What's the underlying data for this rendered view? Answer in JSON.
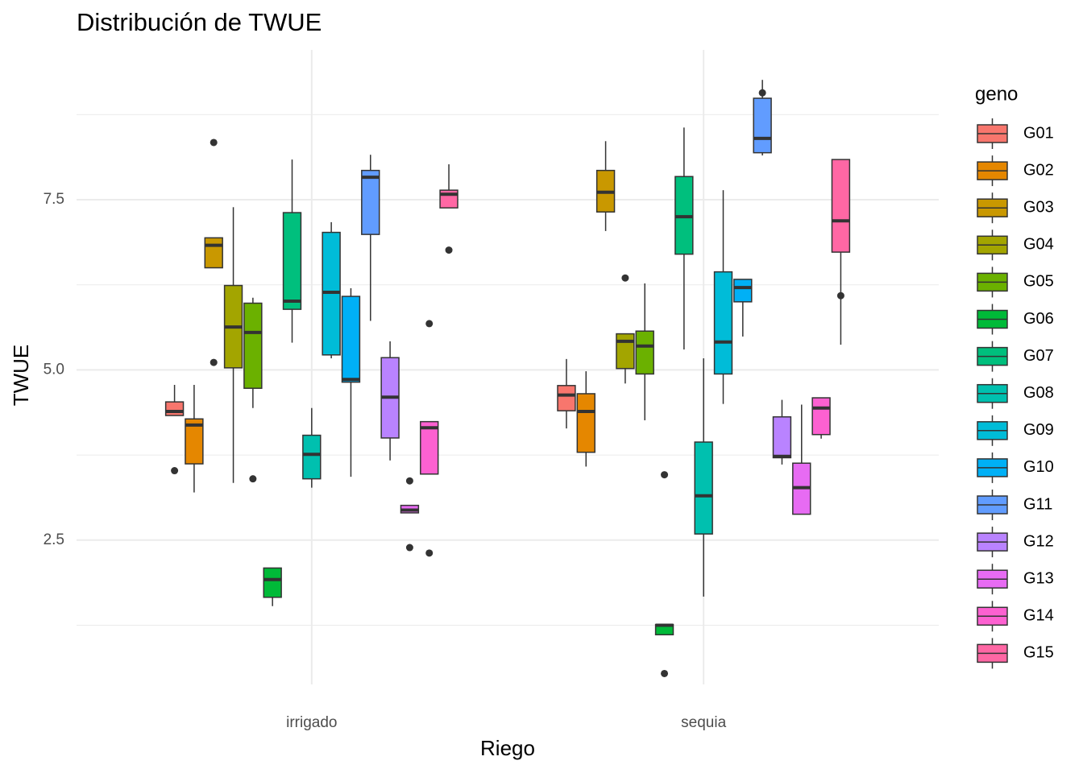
{
  "chart_data": {
    "type": "boxplot",
    "title": "Distribución de TWUE",
    "x_label": "Riego",
    "y_label": "TWUE",
    "categories": [
      "irrigado",
      "sequia"
    ],
    "ylim": [
      0.38,
      9.7
    ],
    "yticks": [
      2.5,
      {
        "value": 5,
        "label": "5.0"
      },
      7.5
    ],
    "minor_yticks": [
      1.25,
      3.75,
      6.25,
      8.75
    ],
    "grid": true,
    "legend_title": "geno",
    "legend_position": "right",
    "series": [
      {
        "name": "G01",
        "color": "#F8766D",
        "low": [
          4.33,
          4.14
        ],
        "q1": [
          4.33,
          4.4
        ],
        "median": [
          4.39,
          4.63
        ],
        "q3": [
          4.53,
          4.77
        ],
        "high": [
          4.78,
          5.16
        ],
        "outliers": [
          [
            3.52
          ],
          []
        ]
      },
      {
        "name": "G02",
        "color": "#E58700",
        "low": [
          3.2,
          3.58
        ],
        "q1": [
          3.62,
          3.79
        ],
        "median": [
          4.19,
          4.39
        ],
        "q3": [
          4.28,
          4.65
        ],
        "high": [
          4.78,
          4.98
        ],
        "outliers": [
          [],
          []
        ]
      },
      {
        "name": "G03",
        "color": "#C99800",
        "low": [
          6.5,
          7.04
        ],
        "q1": [
          6.5,
          7.32
        ],
        "median": [
          6.83,
          7.61
        ],
        "q3": [
          6.94,
          7.93
        ],
        "high": [
          6.94,
          8.36
        ],
        "outliers": [
          [
            8.34,
            5.11
          ],
          []
        ]
      },
      {
        "name": "G04",
        "color": "#A3A500",
        "low": [
          3.34,
          4.8
        ],
        "q1": [
          5.03,
          5.02
        ],
        "median": [
          5.63,
          5.42
        ],
        "q3": [
          6.24,
          5.53
        ],
        "high": [
          7.39,
          5.53
        ],
        "outliers": [
          [],
          [
            6.35
          ]
        ]
      },
      {
        "name": "G05",
        "color": "#6BB100",
        "low": [
          4.44,
          4.26
        ],
        "q1": [
          4.73,
          4.94
        ],
        "median": [
          5.55,
          5.35
        ],
        "q3": [
          5.98,
          5.57
        ],
        "high": [
          6.06,
          6.27
        ],
        "outliers": [
          [
            3.4
          ],
          []
        ]
      },
      {
        "name": "G06",
        "color": "#00BA38",
        "low": [
          1.53,
          1.11
        ],
        "q1": [
          1.66,
          1.11
        ],
        "median": [
          1.92,
          1.25
        ],
        "q3": [
          2.09,
          1.26
        ],
        "high": [
          2.09,
          1.26
        ],
        "outliers": [
          [],
          [
            3.46,
            0.54
          ]
        ]
      },
      {
        "name": "G07",
        "color": "#00BF7D",
        "low": [
          5.4,
          5.3
        ],
        "q1": [
          5.89,
          6.7
        ],
        "median": [
          6.01,
          7.25
        ],
        "q3": [
          7.31,
          7.84
        ],
        "high": [
          8.09,
          8.56
        ],
        "outliers": [
          [],
          []
        ]
      },
      {
        "name": "G08",
        "color": "#00C0AF",
        "low": [
          3.27,
          1.67
        ],
        "q1": [
          3.4,
          2.59
        ],
        "median": [
          3.76,
          3.15
        ],
        "q3": [
          4.04,
          3.94
        ],
        "high": [
          4.44,
          5.17
        ],
        "outliers": [
          [],
          []
        ]
      },
      {
        "name": "G09",
        "color": "#00BCD8",
        "low": [
          5.17,
          4.5
        ],
        "q1": [
          5.22,
          4.94
        ],
        "median": [
          6.14,
          5.41
        ],
        "q3": [
          7.02,
          6.44
        ],
        "high": [
          7.17,
          7.64
        ],
        "outliers": [
          [],
          []
        ]
      },
      {
        "name": "G10",
        "color": "#00B0F6",
        "low": [
          3.43,
          5.49
        ],
        "q1": [
          4.82,
          6.0
        ],
        "median": [
          4.86,
          6.21
        ],
        "q3": [
          6.08,
          6.33
        ],
        "high": [
          6.2,
          6.33
        ],
        "outliers": [
          [],
          []
        ]
      },
      {
        "name": "G11",
        "color": "#619CFF",
        "low": [
          5.72,
          8.15
        ],
        "q1": [
          6.99,
          8.19
        ],
        "median": [
          7.83,
          8.4
        ],
        "q3": [
          7.93,
          8.99
        ],
        "high": [
          8.16,
          9.26
        ],
        "outliers": [
          [],
          [
            9.07
          ]
        ]
      },
      {
        "name": "G12",
        "color": "#B983FF",
        "low": [
          3.67,
          3.61
        ],
        "q1": [
          4.0,
          3.71
        ],
        "median": [
          4.6,
          3.73
        ],
        "q3": [
          5.18,
          4.31
        ],
        "high": [
          5.42,
          4.56
        ],
        "outliers": [
          [],
          []
        ]
      },
      {
        "name": "G13",
        "color": "#E76BF3",
        "low": [
          2.9,
          2.88
        ],
        "q1": [
          2.9,
          2.88
        ],
        "median": [
          2.94,
          3.27
        ],
        "q3": [
          3.01,
          3.63
        ],
        "high": [
          3.01,
          4.49
        ],
        "outliers": [
          [
            3.37,
            2.39
          ],
          []
        ]
      },
      {
        "name": "G14",
        "color": "#FD61D1",
        "low": [
          3.47,
          3.99
        ],
        "q1": [
          3.47,
          4.05
        ],
        "median": [
          4.15,
          4.44
        ],
        "q3": [
          4.24,
          4.59
        ],
        "high": [
          4.24,
          4.59
        ],
        "outliers": [
          [
            5.68,
            2.31
          ],
          []
        ]
      },
      {
        "name": "G15",
        "color": "#FF67A4",
        "low": [
          7.38,
          5.37
        ],
        "q1": [
          7.38,
          6.73
        ],
        "median": [
          7.58,
          7.19
        ],
        "q3": [
          7.64,
          8.09
        ],
        "high": [
          8.02,
          8.09
        ],
        "outliers": [
          [
            6.76
          ],
          [
            6.09
          ]
        ]
      }
    ]
  }
}
